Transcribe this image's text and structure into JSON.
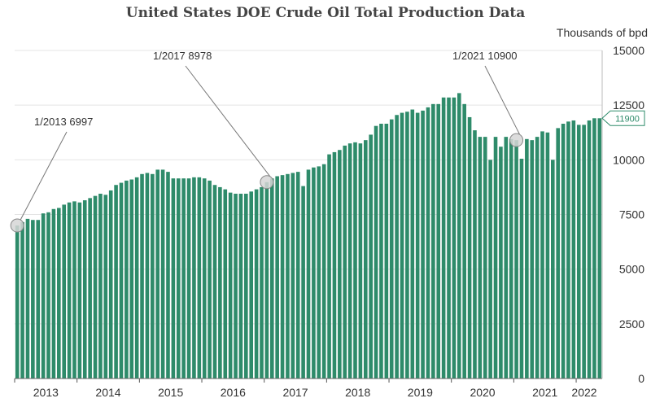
{
  "chart_data": {
    "type": "bar",
    "title": "United States DOE Crude Oil Total Production Data",
    "unit_label": "Thousands of bpd",
    "ylim": [
      0,
      15000
    ],
    "y_ticks": [
      0,
      2500,
      5000,
      7500,
      10000,
      12500,
      15000
    ],
    "x_labels": [
      "2013",
      "2014",
      "2015",
      "2016",
      "2017",
      "2018",
      "2019",
      "2020",
      "2021",
      "2022"
    ],
    "start": "2013-01",
    "bar_color": "#2e8b6a",
    "values": [
      6997,
      7150,
      7300,
      7250,
      7250,
      7550,
      7600,
      7750,
      7800,
      7950,
      8050,
      8100,
      8050,
      8150,
      8250,
      8350,
      8450,
      8400,
      8600,
      8850,
      8950,
      9050,
      9100,
      9200,
      9350,
      9400,
      9350,
      9550,
      9550,
      9450,
      9150,
      9150,
      9150,
      9150,
      9200,
      9200,
      9150,
      9050,
      8850,
      8750,
      8650,
      8500,
      8450,
      8450,
      8450,
      8550,
      8650,
      8750,
      8978,
      9150,
      9250,
      9300,
      9350,
      9400,
      9450,
      8800,
      9550,
      9650,
      9700,
      9800,
      10250,
      10350,
      10450,
      10650,
      10750,
      10800,
      10750,
      10900,
      11150,
      11550,
      11650,
      11650,
      11850,
      12050,
      12150,
      12200,
      12300,
      12150,
      12250,
      12400,
      12550,
      12550,
      12850,
      12850,
      12850,
      13050,
      12550,
      11950,
      11350,
      11050,
      11050,
      10000,
      11050,
      10600,
      11050,
      10950,
      10900,
      10050,
      10950,
      10900,
      11050,
      11300,
      11250,
      10000,
      11450,
      11650,
      11750,
      11800,
      11600,
      11600,
      11800,
      11900,
      11900
    ],
    "annotations": [
      {
        "index": 0,
        "label": "1/2013 6997"
      },
      {
        "index": 48,
        "label": "1/2017 8978"
      },
      {
        "index": 96,
        "label": "1/2021 10900"
      }
    ],
    "last_value_tag": "11900"
  }
}
